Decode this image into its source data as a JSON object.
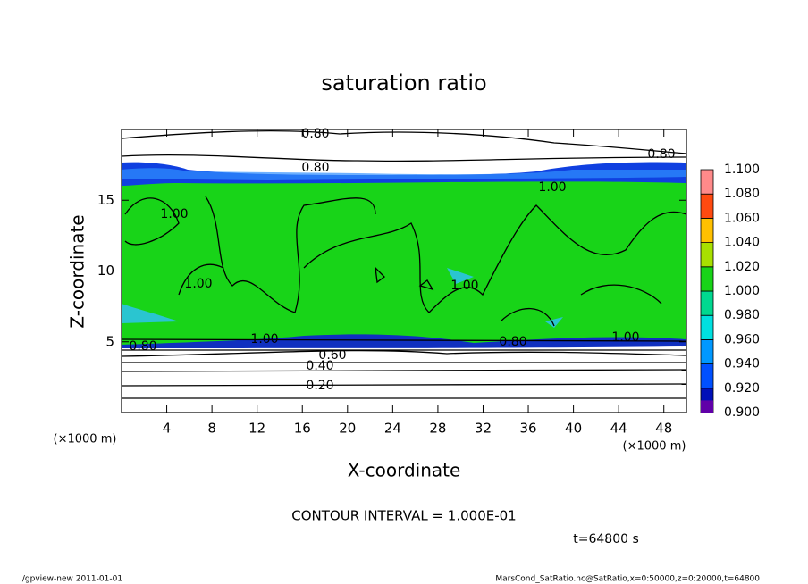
{
  "chart_data": {
    "type": "contour",
    "title": "saturation ratio",
    "xlabel": "X-coordinate",
    "ylabel": "Z-coordinate",
    "x_unit": "(×1000 m)",
    "y_unit": "(×1000 m)",
    "xlim": [
      0,
      50
    ],
    "xticks": [
      4,
      8,
      12,
      16,
      20,
      24,
      28,
      32,
      36,
      40,
      44,
      48
    ],
    "ylim": [
      0,
      20
    ],
    "yticks": [
      5,
      10,
      15
    ],
    "contour_labels": [
      "0.80",
      "0.80",
      "0.80",
      "1.00",
      "1.00",
      "1.00",
      "1.00",
      "1.00",
      "0.80",
      "0.80",
      "0.60",
      "0.40",
      "0.20",
      "1.00"
    ],
    "colorbar": {
      "levels": [
        {
          "value": 0.9,
          "label": "0.900"
        },
        {
          "value": 0.92,
          "label": "0.920"
        },
        {
          "value": 0.94,
          "label": "0.940"
        },
        {
          "value": 0.96,
          "label": "0.960"
        },
        {
          "value": 0.98,
          "label": "0.980"
        },
        {
          "value": 1.0,
          "label": "1.000"
        },
        {
          "value": 1.02,
          "label": "1.020"
        },
        {
          "value": 1.04,
          "label": "1.040"
        },
        {
          "value": 1.06,
          "label": "1.060"
        },
        {
          "value": 1.08,
          "label": "1.080"
        },
        {
          "value": 1.1,
          "label": "1.100"
        }
      ],
      "colors": [
        "#6000a8",
        "#0010b8",
        "#0050ff",
        "#0098ff",
        "#00e0e0",
        "#00d890",
        "#18d418",
        "#a8e000",
        "#ffc000",
        "#ff4a10",
        "#ff8a8a"
      ]
    },
    "contour_interval": "CONTOUR INTERVAL = 1.000E-01",
    "time_label": "t=64800 s",
    "footer_left": "./gpview-new  2011-01-01",
    "footer_right": "MarsCond_SatRatio.nc@SatRatio,x=0:50000,z=0:20000,t=64800"
  }
}
